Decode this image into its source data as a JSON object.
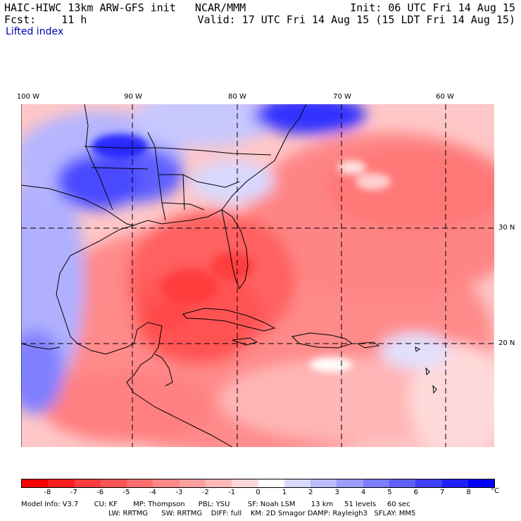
{
  "header": {
    "line1_left": "HAIC-HIWC 13km ARW-GFS init   NCAR/MMM",
    "line2_left": "Fcst:    11 h",
    "line1_right": "Init: 06 UTC Fri 14 Aug 15",
    "line2_right": "Valid: 17 UTC Fri 14 Aug 15 (15 LDT Fri 14 Aug 15)"
  },
  "field_name": "Lifted index",
  "map": {
    "longitude_labels": [
      "100 W",
      "90 W",
      "80 W",
      "70 W",
      "60 W"
    ],
    "latitude_labels": [
      "30 N",
      "20 N"
    ]
  },
  "colorbar": {
    "labels": [
      "-8",
      "-7",
      "-6",
      "-5",
      "-4",
      "-3",
      "-2",
      "-1",
      "0",
      "1",
      "2",
      "3",
      "4",
      "5",
      "6",
      "7",
      "8"
    ],
    "unit": "°C",
    "colors": [
      "#ff0000",
      "#ff1e1e",
      "#ff3c3c",
      "#ff5555",
      "#ff6e6e",
      "#ff8787",
      "#ffa0a0",
      "#ffb9b9",
      "#ffd7d7",
      "#ffffff",
      "#d9d9ff",
      "#babaff",
      "#9c9cff",
      "#7d7dff",
      "#5f5fff",
      "#4040ff",
      "#2020ff",
      "#0000ff"
    ]
  },
  "model_info": {
    "line1": "Model Info: V3.7       CU: KF       MP: Thompson      PBL: YSU        SF: Noah LSM       13 km     51 levels     60 sec",
    "line2": "LW: RRTMG      SW: RRTMG    DIFF: full    KM: 2D Smagor DAMP: Rayleigh3   SFLAY: MM5"
  }
}
